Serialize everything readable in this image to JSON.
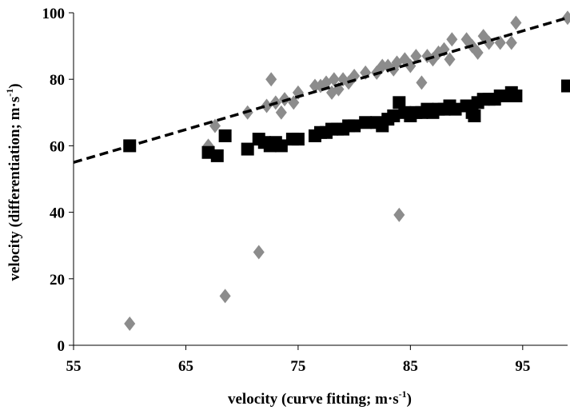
{
  "chart_data": {
    "type": "scatter",
    "title": "",
    "xlabel_parts": [
      "velocity (curve fitting; m·s",
      "-1",
      ")"
    ],
    "ylabel_parts": [
      "velocity (differentiation; m·s",
      "-1",
      ")"
    ],
    "xlim": [
      55,
      99
    ],
    "ylim": [
      0,
      100
    ],
    "x_ticks": [
      55,
      65,
      75,
      85,
      95
    ],
    "y_ticks": [
      0,
      20,
      40,
      60,
      80,
      100
    ],
    "grid": false,
    "legend": "none",
    "series": [
      {
        "marker": "diamond",
        "color": "#8c8c8c",
        "points": [
          [
            60.0,
            6.5
          ],
          [
            67.0,
            60
          ],
          [
            67.6,
            66
          ],
          [
            68.5,
            14.8
          ],
          [
            70.5,
            70
          ],
          [
            71.5,
            28
          ],
          [
            72.2,
            72
          ],
          [
            72.6,
            80
          ],
          [
            73.0,
            73
          ],
          [
            73.5,
            70
          ],
          [
            73.8,
            74
          ],
          [
            74.6,
            73
          ],
          [
            75.0,
            76
          ],
          [
            76.5,
            78
          ],
          [
            77.0,
            78
          ],
          [
            77.5,
            79
          ],
          [
            78.0,
            76
          ],
          [
            78.2,
            80
          ],
          [
            78.6,
            77
          ],
          [
            79.0,
            80
          ],
          [
            79.5,
            79
          ],
          [
            80.0,
            81
          ],
          [
            81.0,
            82
          ],
          [
            82.0,
            82
          ],
          [
            82.5,
            84
          ],
          [
            83.0,
            84
          ],
          [
            83.5,
            83
          ],
          [
            83.8,
            85
          ],
          [
            84.0,
            39.2
          ],
          [
            84.5,
            86
          ],
          [
            85.0,
            84
          ],
          [
            85.5,
            87
          ],
          [
            86.0,
            79
          ],
          [
            86.5,
            87
          ],
          [
            87.0,
            86
          ],
          [
            87.5,
            88
          ],
          [
            88.0,
            89
          ],
          [
            88.5,
            86
          ],
          [
            88.7,
            92
          ],
          [
            90.0,
            92
          ],
          [
            90.5,
            90
          ],
          [
            91.0,
            88
          ],
          [
            91.5,
            93
          ],
          [
            92.0,
            91
          ],
          [
            93.0,
            91
          ],
          [
            94.0,
            91
          ],
          [
            94.4,
            97
          ],
          [
            99.0,
            98.5
          ]
        ]
      },
      {
        "marker": "square",
        "color": "#000000",
        "points": [
          [
            60.0,
            60
          ],
          [
            67.0,
            58
          ],
          [
            67.8,
            57
          ],
          [
            68.5,
            63
          ],
          [
            70.5,
            59
          ],
          [
            71.5,
            62
          ],
          [
            72.0,
            61
          ],
          [
            72.5,
            60
          ],
          [
            73.0,
            61
          ],
          [
            73.5,
            60
          ],
          [
            74.5,
            62
          ],
          [
            75.0,
            62
          ],
          [
            76.5,
            63
          ],
          [
            77.0,
            64
          ],
          [
            77.5,
            64
          ],
          [
            78.0,
            65
          ],
          [
            78.5,
            65
          ],
          [
            79.0,
            65
          ],
          [
            79.5,
            66
          ],
          [
            80.0,
            66
          ],
          [
            81.0,
            67
          ],
          [
            82.0,
            67
          ],
          [
            82.5,
            66
          ],
          [
            83.0,
            68
          ],
          [
            83.5,
            69
          ],
          [
            84.0,
            73
          ],
          [
            84.5,
            70
          ],
          [
            85.0,
            69
          ],
          [
            85.5,
            70
          ],
          [
            86.0,
            70
          ],
          [
            86.5,
            71
          ],
          [
            87.0,
            70
          ],
          [
            87.5,
            71
          ],
          [
            88.0,
            71
          ],
          [
            88.5,
            72
          ],
          [
            89.0,
            71
          ],
          [
            90.0,
            72
          ],
          [
            90.5,
            70
          ],
          [
            90.7,
            69
          ],
          [
            91.0,
            73
          ],
          [
            91.5,
            74
          ],
          [
            92.0,
            74
          ],
          [
            92.5,
            74
          ],
          [
            93.0,
            75
          ],
          [
            93.5,
            75
          ],
          [
            94.0,
            76
          ],
          [
            94.4,
            75
          ],
          [
            99.0,
            78
          ]
        ]
      }
    ],
    "trendline": {
      "style": "dashed",
      "color": "#000000",
      "points": [
        [
          55,
          55
        ],
        [
          99,
          98.5
        ]
      ]
    }
  }
}
